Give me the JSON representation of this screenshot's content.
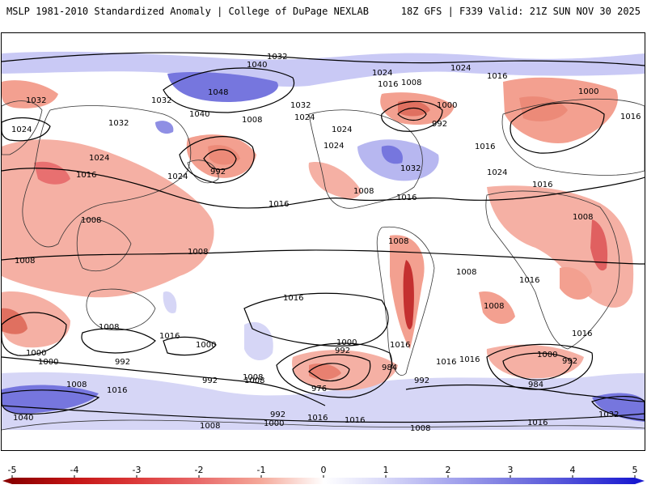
{
  "header": {
    "left_title": "MSLP 1981-2010 Standardized Anomaly | College of DuPage NEXLAB",
    "right_title": "18Z GFS | F339 Valid: 21Z SUN NOV 30 2025"
  },
  "map": {
    "projection": "global-cylindrical",
    "field": "MSLP standardized anomaly",
    "isobar_labels": [
      "1032",
      "1040",
      "1032",
      "1024",
      "1016",
      "1008",
      "1024",
      "1016",
      "1000",
      "992",
      "1008",
      "1016",
      "1000",
      "1016",
      "1024",
      "1032",
      "1048",
      "1032",
      "1040",
      "1032",
      "1024",
      "1008",
      "1024",
      "1024",
      "1024",
      "992",
      "1024",
      "1016",
      "1032",
      "1024",
      "1016",
      "1008",
      "1016",
      "1016",
      "1008",
      "1008",
      "1008",
      "1008",
      "1008",
      "1016",
      "1016",
      "1008",
      "1008",
      "1016",
      "1000",
      "1000",
      "992",
      "992",
      "1000",
      "1016",
      "1016",
      "1000",
      "992",
      "992",
      "1008",
      "1016",
      "976",
      "984",
      "1016",
      "1008",
      "1016",
      "1016",
      "1008",
      "1000",
      "992",
      "984",
      "1008",
      "1000",
      "1016",
      "1040",
      "1032",
      "992",
      "1008",
      "1016"
    ]
  },
  "colorbar": {
    "ticks": [
      "-5",
      "-4",
      "-3",
      "-2",
      "-1",
      "0",
      "1",
      "2",
      "3",
      "4",
      "5"
    ],
    "colors": [
      "#8b0000",
      "#c41515",
      "#dc3a3a",
      "#e86a6a",
      "#f5a99a",
      "#ffffff",
      "#d8d8f8",
      "#a8a8ee",
      "#7a7ae0",
      "#4c4cd8",
      "#1a1ad0"
    ]
  }
}
